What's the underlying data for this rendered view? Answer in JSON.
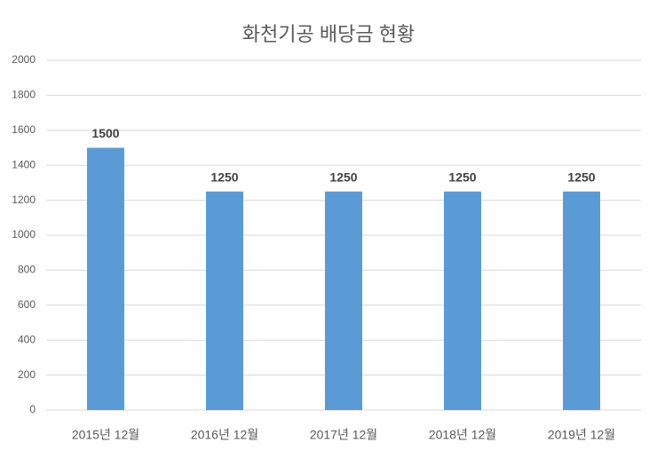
{
  "chart_data": {
    "type": "bar",
    "title": "화천기공 배당금 현황",
    "categories": [
      "2015년 12월",
      "2016년 12월",
      "2017년 12월",
      "2018년 12월",
      "2019년 12월"
    ],
    "values": [
      1500,
      1250,
      1250,
      1250,
      1250
    ],
    "color": "#5b9bd5",
    "ylim": [
      0,
      2000
    ],
    "yticks": [
      0,
      200,
      400,
      600,
      800,
      1000,
      1200,
      1400,
      1600,
      1800,
      2000
    ],
    "grid": true
  }
}
